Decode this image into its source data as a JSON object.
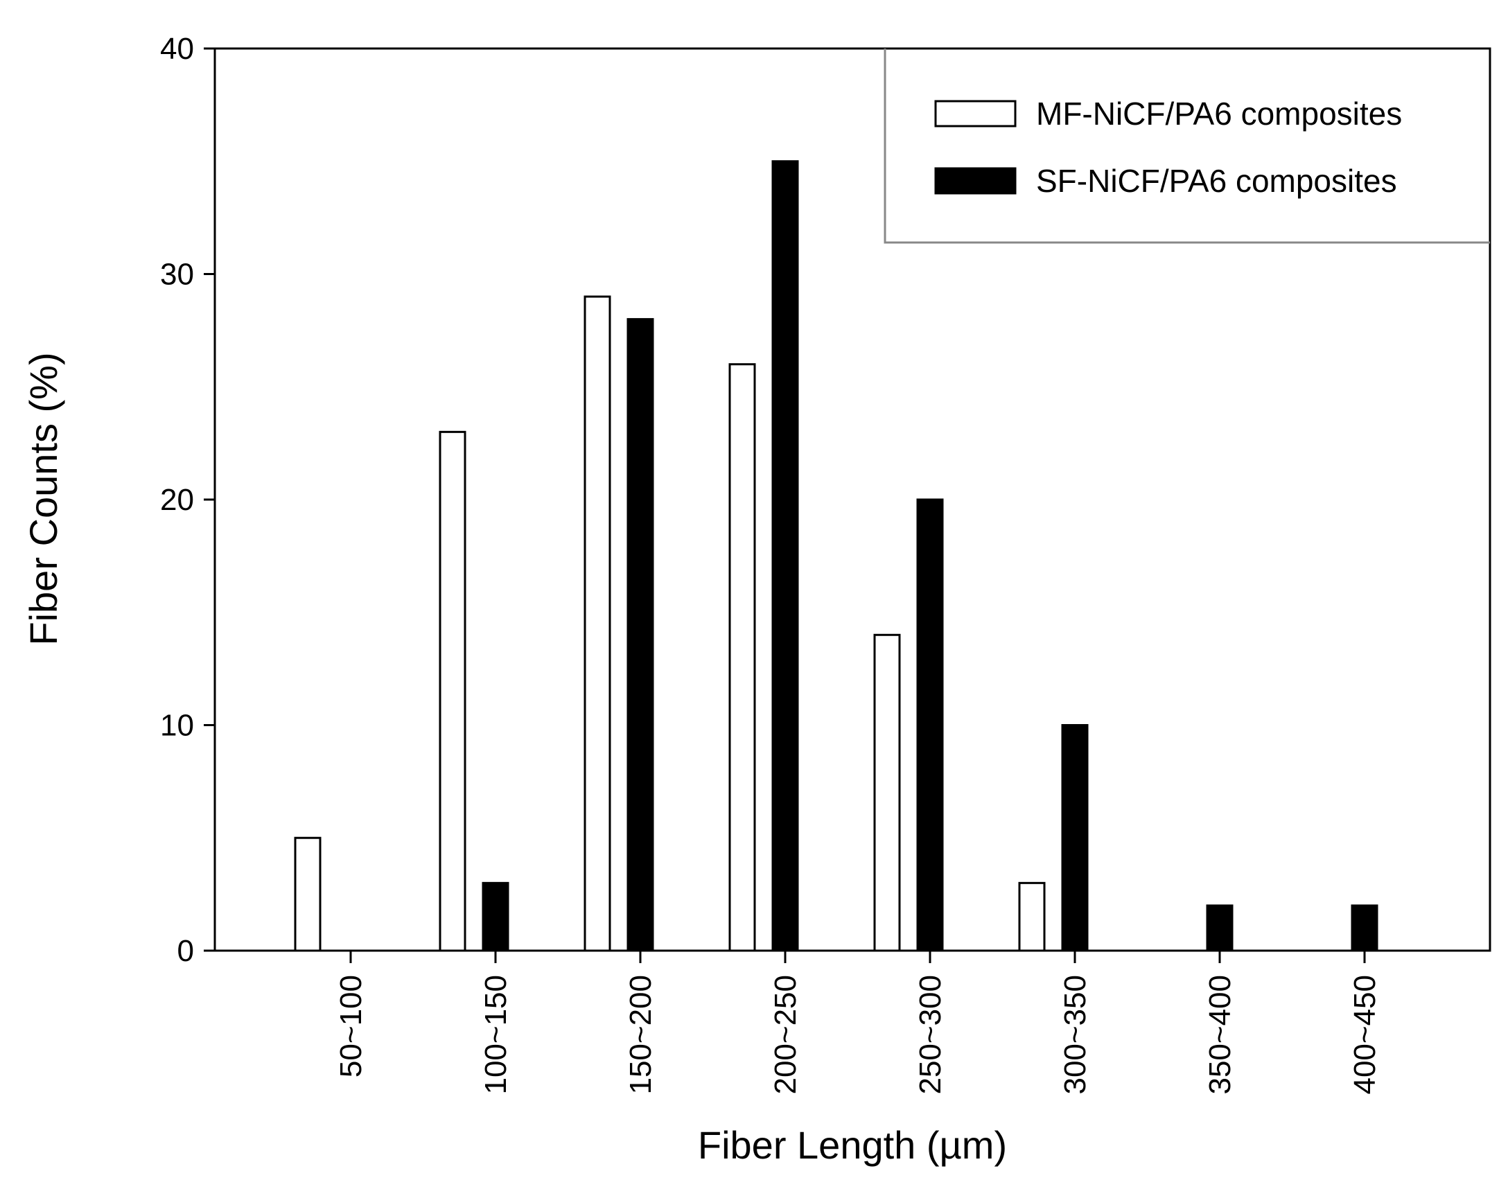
{
  "chart_data": {
    "type": "bar",
    "xlabel": "Fiber Length (µm)",
    "ylabel": "Fiber Counts (%)",
    "categories": [
      "50~100",
      "100~150",
      "150~200",
      "200~250",
      "250~300",
      "300~350",
      "350~400",
      "400~450"
    ],
    "series": [
      {
        "name": "MF-NiCF/PA6 composites",
        "fill": "#ffffff",
        "stroke": "#000000",
        "values": [
          5,
          23,
          29,
          26,
          14,
          3,
          0,
          0
        ]
      },
      {
        "name": "SF-NiCF/PA6 composites",
        "fill": "#000000",
        "stroke": "#000000",
        "values": [
          0,
          3,
          28,
          35,
          20,
          10,
          2,
          2
        ]
      }
    ],
    "ylim": [
      0,
      40
    ],
    "yticks": [
      0,
      10,
      20,
      30,
      40
    ],
    "grid": false,
    "legend_position": "top-right"
  }
}
